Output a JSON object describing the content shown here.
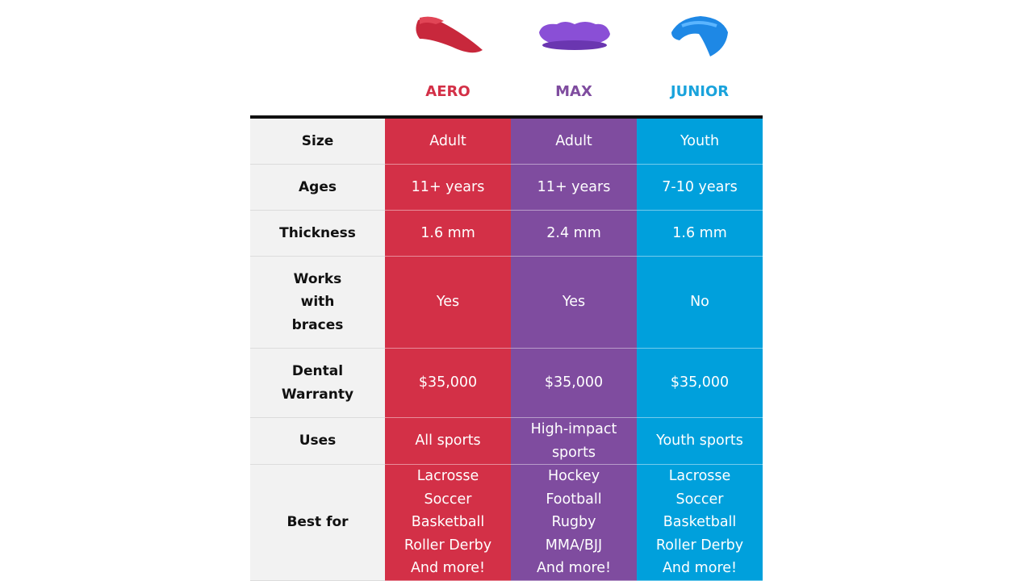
{
  "products": [
    {
      "name": "AERO"
    },
    {
      "name": "MAX"
    },
    {
      "name": "JUNIOR"
    }
  ],
  "rows": [
    {
      "label": "Size",
      "cells": [
        "Adult",
        "Adult",
        "Youth"
      ]
    },
    {
      "label": "Ages",
      "cells": [
        "11+ years",
        "11+ years",
        "7-10 years"
      ]
    },
    {
      "label": "Thickness",
      "cells": [
        "1.6 mm",
        "2.4 mm",
        "1.6 mm"
      ]
    },
    {
      "label": "Works with braces",
      "cells": [
        "Yes",
        "Yes",
        "No"
      ]
    },
    {
      "label": "Dental Warranty",
      "cells": [
        "$35,000",
        "$35,000",
        "$35,000"
      ]
    },
    {
      "label": "Uses",
      "cells": [
        "All sports",
        "High-impact sports",
        "Youth sports"
      ]
    },
    {
      "label": "Best for",
      "cells": [
        [
          "Lacrosse",
          "Soccer",
          "Basketball",
          "Roller Derby",
          "And more!"
        ],
        [
          "Hockey",
          "Football",
          "Rugby",
          "MMA/BJJ",
          "And more!"
        ],
        [
          "Lacrosse",
          "Soccer",
          "Basketball",
          "Roller Derby",
          "And more!"
        ]
      ]
    }
  ]
}
